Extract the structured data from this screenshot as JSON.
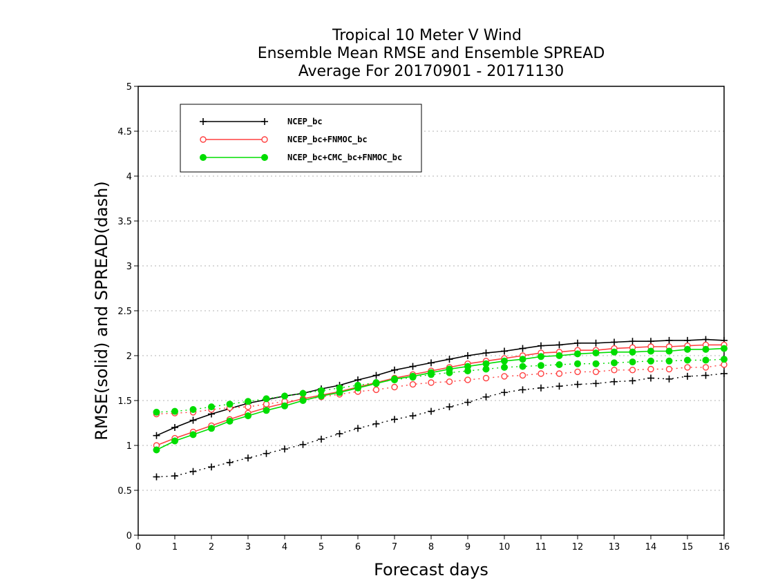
{
  "chart_data": {
    "type": "line",
    "title_lines": [
      "Tropical 10 Meter V Wind",
      "Ensemble Mean RMSE and Ensemble SPREAD",
      "Average For 20170901 - 20171130"
    ],
    "xlabel": "Forecast days",
    "ylabel": "RMSE(solid) and SPREAD(dash)",
    "xlim": [
      0,
      16
    ],
    "ylim": [
      0,
      5
    ],
    "xticks": [
      "0",
      "1",
      "2",
      "3",
      "4",
      "5",
      "6",
      "7",
      "8",
      "9",
      "10",
      "11",
      "12",
      "13",
      "14",
      "15",
      "16"
    ],
    "yticks": [
      "0",
      "0.5",
      "1",
      "1.5",
      "2",
      "2.5",
      "3",
      "3.5",
      "4",
      "4.5",
      "5"
    ],
    "grid": "horizontal-dotted",
    "legend_position": "top-left",
    "x": [
      0.5,
      1,
      1.5,
      2,
      2.5,
      3,
      3.5,
      4,
      4.5,
      5,
      5.5,
      6,
      6.5,
      7,
      7.5,
      8,
      8.5,
      9,
      9.5,
      10,
      10.5,
      11,
      11.5,
      12,
      12.5,
      13,
      13.5,
      14,
      14.5,
      15,
      15.5,
      16
    ],
    "series": [
      {
        "name": "NCEP_bc",
        "color": "#000000",
        "marker": "plus",
        "rmse": [
          1.11,
          1.2,
          1.28,
          1.35,
          1.41,
          1.47,
          1.51,
          1.55,
          1.58,
          1.63,
          1.67,
          1.73,
          1.78,
          1.84,
          1.88,
          1.92,
          1.96,
          2.0,
          2.03,
          2.05,
          2.08,
          2.11,
          2.12,
          2.14,
          2.14,
          2.15,
          2.16,
          2.16,
          2.17,
          2.17,
          2.18,
          2.17
        ],
        "spread": [
          0.65,
          0.66,
          0.71,
          0.76,
          0.81,
          0.86,
          0.91,
          0.96,
          1.01,
          1.07,
          1.13,
          1.19,
          1.24,
          1.29,
          1.33,
          1.38,
          1.43,
          1.48,
          1.54,
          1.59,
          1.62,
          1.64,
          1.66,
          1.68,
          1.69,
          1.71,
          1.72,
          1.75,
          1.74,
          1.77,
          1.78,
          1.8
        ]
      },
      {
        "name": "NCEP_bc+FNMOC_bc",
        "color": "#ff4040",
        "marker": "open-circle",
        "rmse": [
          1.0,
          1.08,
          1.15,
          1.22,
          1.29,
          1.36,
          1.42,
          1.47,
          1.52,
          1.56,
          1.6,
          1.65,
          1.7,
          1.75,
          1.79,
          1.83,
          1.87,
          1.91,
          1.94,
          1.97,
          2.0,
          2.03,
          2.04,
          2.06,
          2.06,
          2.08,
          2.09,
          2.1,
          2.1,
          2.11,
          2.12,
          2.12
        ],
        "spread": [
          1.35,
          1.36,
          1.37,
          1.4,
          1.42,
          1.43,
          1.46,
          1.49,
          1.51,
          1.54,
          1.57,
          1.6,
          1.62,
          1.65,
          1.68,
          1.7,
          1.71,
          1.73,
          1.75,
          1.77,
          1.78,
          1.8,
          1.8,
          1.82,
          1.82,
          1.84,
          1.84,
          1.85,
          1.85,
          1.87,
          1.87,
          1.9
        ]
      },
      {
        "name": "NCEP_bc+CMC_bc+FNMOC_bc",
        "color": "#00dd00",
        "marker": "filled-circle",
        "rmse": [
          0.95,
          1.05,
          1.12,
          1.19,
          1.27,
          1.33,
          1.39,
          1.44,
          1.5,
          1.55,
          1.59,
          1.64,
          1.69,
          1.74,
          1.77,
          1.81,
          1.85,
          1.88,
          1.91,
          1.94,
          1.96,
          1.99,
          2.0,
          2.02,
          2.03,
          2.04,
          2.04,
          2.05,
          2.05,
          2.07,
          2.07,
          2.08
        ],
        "spread": [
          1.37,
          1.38,
          1.4,
          1.43,
          1.46,
          1.49,
          1.52,
          1.55,
          1.58,
          1.61,
          1.64,
          1.67,
          1.7,
          1.73,
          1.76,
          1.79,
          1.81,
          1.83,
          1.85,
          1.87,
          1.88,
          1.89,
          1.9,
          1.91,
          1.91,
          1.92,
          1.93,
          1.94,
          1.94,
          1.95,
          1.95,
          1.96
        ]
      }
    ]
  }
}
